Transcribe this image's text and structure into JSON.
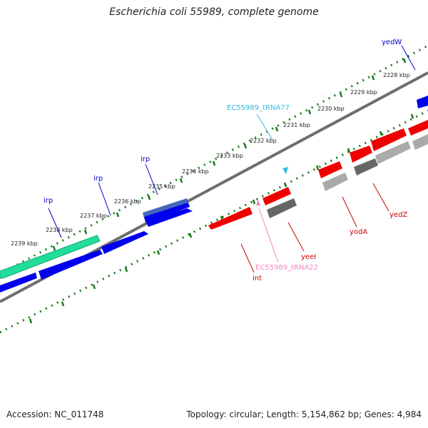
{
  "title": "Escherichia coli 55989, complete genome",
  "footer": {
    "accession": "Accession: NC_011748",
    "summary": "Topology: circular; Length: 5,154,862 bp; Genes: 4,984"
  },
  "ticks": [
    {
      "label": "2228 kbp"
    },
    {
      "label": "2229 kbp"
    },
    {
      "label": "2230 kbp"
    },
    {
      "label": "2231 kbp"
    },
    {
      "label": "2232 kbp"
    },
    {
      "label": "2233 kbp"
    },
    {
      "label": "2234 kbp"
    },
    {
      "label": "2235 kbp"
    },
    {
      "label": "2236 kbp"
    },
    {
      "label": "2237 kbp"
    },
    {
      "label": "2238 kbp"
    },
    {
      "label": "2239 kbp"
    }
  ],
  "features": [
    {
      "name": "yedW",
      "color": "#0000cc"
    },
    {
      "name": "EC55989_tRNA77",
      "color": "#33bbdd"
    },
    {
      "name": "irp",
      "color": "#0000cc"
    },
    {
      "name": "irp",
      "color": "#0000cc"
    },
    {
      "name": "irp",
      "color": "#0000cc"
    },
    {
      "name": "yedZ",
      "color": "#cc0000"
    },
    {
      "name": "yodA",
      "color": "#cc0000"
    },
    {
      "name": "yeeI",
      "color": "#cc0000"
    },
    {
      "name": "EC55989_tRNA22",
      "color": "#ee88bb"
    },
    {
      "name": "int",
      "color": "#cc0000"
    }
  ],
  "colors": {
    "backbone": "#6e6e6e",
    "tick": "#1a7a1a",
    "forward_gene": "#0000ee",
    "reverse_gene": "#ee0000",
    "pseudo_gene": "#666666",
    "rna_gene": "#aaaaaa",
    "mobile_element": "#22dd99",
    "misc_feature": "#4466bb"
  }
}
